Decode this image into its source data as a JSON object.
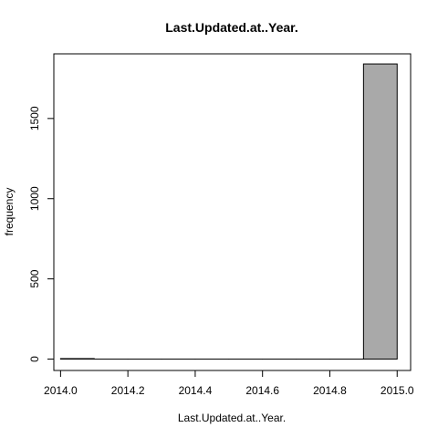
{
  "chart_data": {
    "type": "bar",
    "title": "Last.Updated.at..Year.",
    "xlabel": "Last.Updated.at..Year.",
    "ylabel": "frequency",
    "xlim": [
      2013.98,
      2015.04
    ],
    "ylim": [
      -71,
      1903
    ],
    "xticks": [
      "2014.0",
      "2014.2",
      "2014.4",
      "2014.6",
      "2014.8",
      "2015.0"
    ],
    "xtick_values": [
      2014.0,
      2014.2,
      2014.4,
      2014.6,
      2014.8,
      2015.0
    ],
    "yticks": [
      "0",
      "500",
      "1000",
      "1500"
    ],
    "ytick_values": [
      0,
      500,
      1000,
      1500
    ],
    "bins": [
      {
        "x0": 2014.0,
        "x1": 2014.1,
        "value": 3
      },
      {
        "x0": 2014.1,
        "x1": 2014.2,
        "value": 0
      },
      {
        "x0": 2014.2,
        "x1": 2014.3,
        "value": 0
      },
      {
        "x0": 2014.3,
        "x1": 2014.4,
        "value": 0
      },
      {
        "x0": 2014.4,
        "x1": 2014.5,
        "value": 0
      },
      {
        "x0": 2014.5,
        "x1": 2014.6,
        "value": 0
      },
      {
        "x0": 2014.6,
        "x1": 2014.7,
        "value": 0
      },
      {
        "x0": 2014.7,
        "x1": 2014.8,
        "value": 0
      },
      {
        "x0": 2014.8,
        "x1": 2014.9,
        "value": 0
      },
      {
        "x0": 2014.9,
        "x1": 2015.0,
        "value": 1840
      }
    ],
    "bar_color": "#a9a9a9",
    "grid": false
  }
}
